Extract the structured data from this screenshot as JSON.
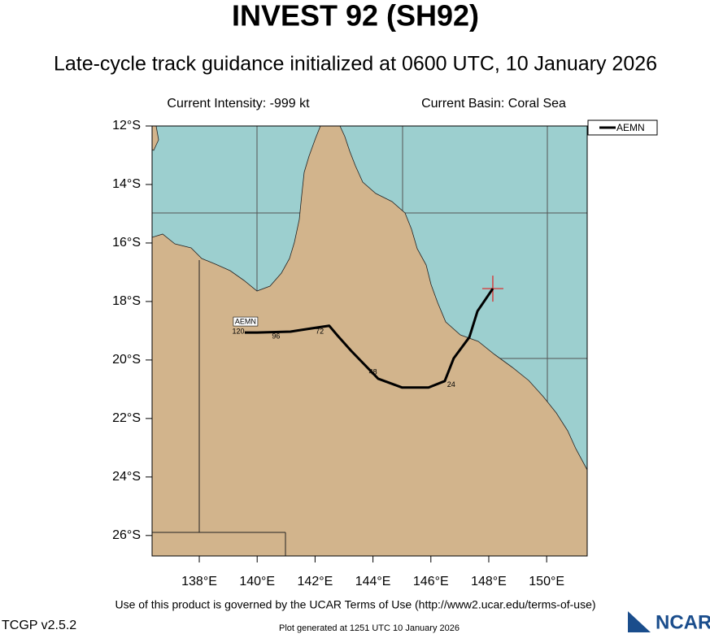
{
  "header": {
    "title": "INVEST 92 (SH92)",
    "subtitle": "Late-cycle track guidance initialized at 0600 UTC, 10 January 2026"
  },
  "info": {
    "intensity": "Current Intensity: -999 kt",
    "basin": "Current Basin: Coral Sea"
  },
  "map": {
    "lonlim": [
      136.37,
      151.4
    ],
    "latlim": [
      -26.7,
      -12
    ],
    "lonticks": [
      {
        "value": 138,
        "label": "138°E"
      },
      {
        "value": 140,
        "label": "140°E"
      },
      {
        "value": 142,
        "label": "142°E"
      },
      {
        "value": 144,
        "label": "144°E"
      },
      {
        "value": 146,
        "label": "146°E"
      },
      {
        "value": 148,
        "label": "148°E"
      },
      {
        "value": 150,
        "label": "150°E"
      }
    ],
    "latticks": [
      {
        "value": -12,
        "label": "12°S"
      },
      {
        "value": -14,
        "label": "14°S"
      },
      {
        "value": -16,
        "label": "16°S"
      },
      {
        "value": -18,
        "label": "18°S"
      },
      {
        "value": -20,
        "label": "20°S"
      },
      {
        "value": -22,
        "label": "22°S"
      },
      {
        "value": -24,
        "label": "24°S"
      },
      {
        "value": -26,
        "label": "26°S"
      }
    ]
  },
  "tracks": [
    {
      "name": "AEMN",
      "color": "#000000",
      "lon": [
        148.14,
        147.61,
        147.33,
        146.79,
        146.48,
        145.92,
        145.0,
        144.18,
        143.25,
        142.78,
        142.49,
        141.74,
        141.15,
        140.0,
        139.57
      ],
      "lat": [
        -17.56,
        -18.33,
        -19.22,
        -19.94,
        -20.72,
        -20.94,
        -20.94,
        -20.64,
        -19.69,
        -19.17,
        -18.83,
        -18.94,
        -19.03,
        -19.06,
        -19.06
      ]
    }
  ],
  "current_position": {
    "lon": 148.14,
    "lat": -17.56,
    "color": "#e02020"
  },
  "hour_labels": [
    {
      "text": "24",
      "lon": 146.7,
      "lat": -20.86
    },
    {
      "text": "48",
      "lon": 144.0,
      "lat": -20.42
    },
    {
      "text": "72",
      "lon": 142.16,
      "lat": -19.03
    },
    {
      "text": "96",
      "lon": 140.65,
      "lat": -19.2
    },
    {
      "text": "120",
      "lon": 139.35,
      "lat": -19.03
    }
  ],
  "legend": {
    "corner": "top-right"
  },
  "footer": {
    "terms": "Use of this product is governed by the UCAR Terms of Use (http://www2.ucar.edu/terms-of-use)",
    "version": "TCGP v2.5.2",
    "generated": "Plot generated at 1251 UTC   10 January 2026",
    "logo": "NCAR"
  }
}
